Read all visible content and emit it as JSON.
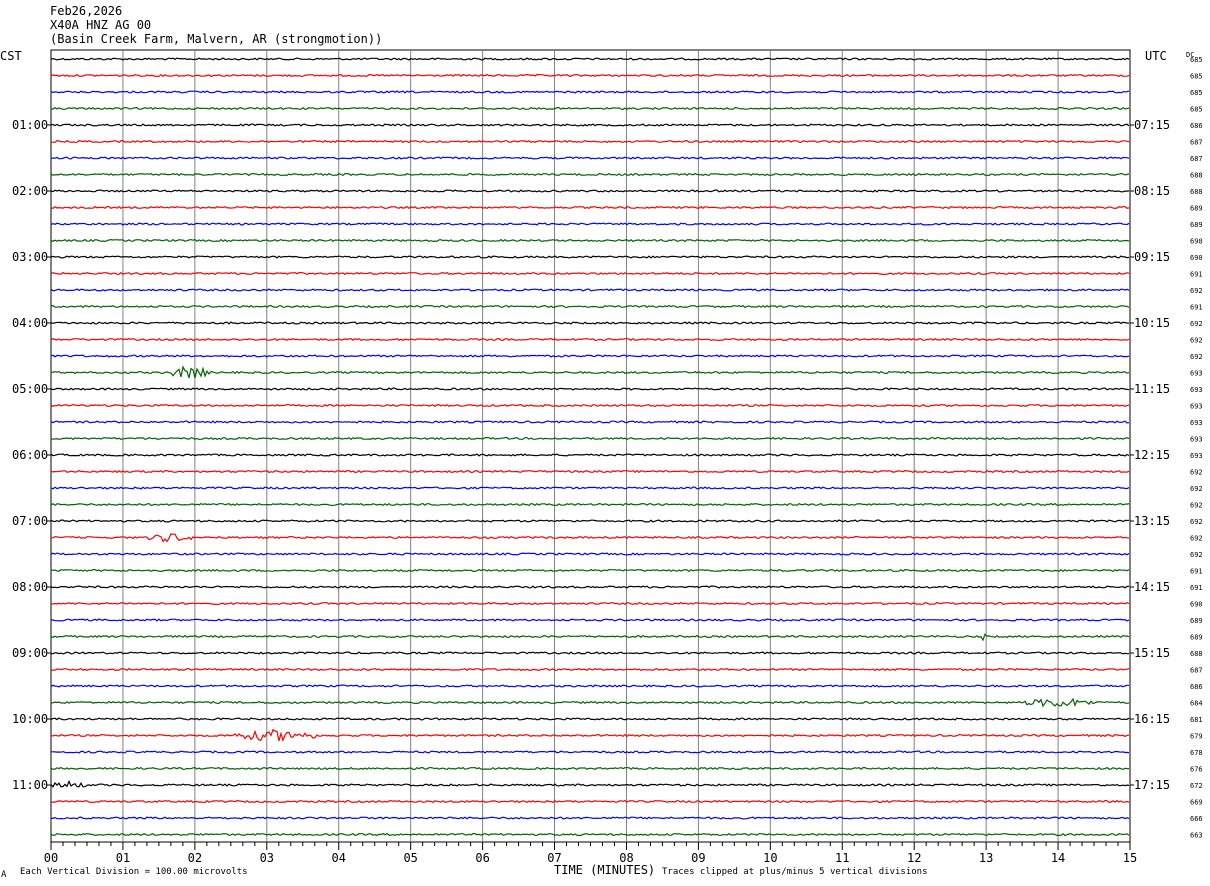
{
  "header": {
    "date": "Feb26,2026",
    "station": "X40A HNZ AG 00",
    "location": "(Basin Creek Farm, Malvern, AR (strongmotion))"
  },
  "corner_labels": {
    "left": "CST",
    "right": "UTC",
    "dc": "DC"
  },
  "footer": {
    "left_note": "Each Vertical Division = 100.00 microvolts",
    "xaxis_title": "TIME (MINUTES)",
    "right_note": "Traces clipped at plus/minus 5 vertical divisions",
    "corner_mark": "A"
  },
  "colors": {
    "black": "#000000",
    "red": "#ff0000",
    "blue": "#0000ff",
    "green": "#006400",
    "grid": "#808080"
  },
  "chart_data": {
    "type": "line",
    "title": "Feb26,2026",
    "xlabel": "TIME (MINUTES)",
    "xlim": [
      0,
      15
    ],
    "x_ticks": [
      "00",
      "01",
      "02",
      "03",
      "04",
      "05",
      "06",
      "07",
      "08",
      "09",
      "10",
      "11",
      "12",
      "13",
      "14",
      "15"
    ],
    "trace_color_cycle": [
      "black",
      "red",
      "blue",
      "green"
    ],
    "trace_count": 48,
    "left_hour_labels": [
      "01:00",
      "02:00",
      "03:00",
      "04:00",
      "05:00",
      "06:00",
      "07:00",
      "08:00",
      "09:00",
      "10:00",
      "11:00"
    ],
    "right_hour_labels": [
      "07:15",
      "08:15",
      "09:15",
      "10:15",
      "11:15",
      "12:15",
      "13:15",
      "14:15",
      "15:15",
      "16:15",
      "17:15"
    ],
    "dc_offsets": [
      "685",
      "685",
      "685",
      "685",
      "686",
      "687",
      "687",
      "688",
      "688",
      "689",
      "689",
      "690",
      "690",
      "691",
      "692",
      "691",
      "692",
      "692",
      "692",
      "693",
      "693",
      "693",
      "693",
      "693",
      "693",
      "692",
      "692",
      "692",
      "692",
      "692",
      "692",
      "691",
      "691",
      "690",
      "689",
      "689",
      "688",
      "687",
      "686",
      "684",
      "681",
      "679",
      "678",
      "676",
      "672",
      "669",
      "666",
      "663"
    ],
    "events": [
      {
        "trace": 19,
        "start_min": 1.65,
        "end_min": 2.2,
        "amplitude": 7
      },
      {
        "trace": 29,
        "start_min": 1.35,
        "end_min": 1.95,
        "amplitude": 5
      },
      {
        "trace": 39,
        "start_min": 13.5,
        "end_min": 14.5,
        "amplitude": 5
      },
      {
        "trace": 41,
        "start_min": 2.5,
        "end_min": 3.7,
        "amplitude": 6
      },
      {
        "trace": 44,
        "start_min": 0.0,
        "end_min": 0.5,
        "amplitude": 4
      },
      {
        "trace": 35,
        "start_min": 12.9,
        "end_min": 13.0,
        "amplitude": 4
      }
    ]
  }
}
